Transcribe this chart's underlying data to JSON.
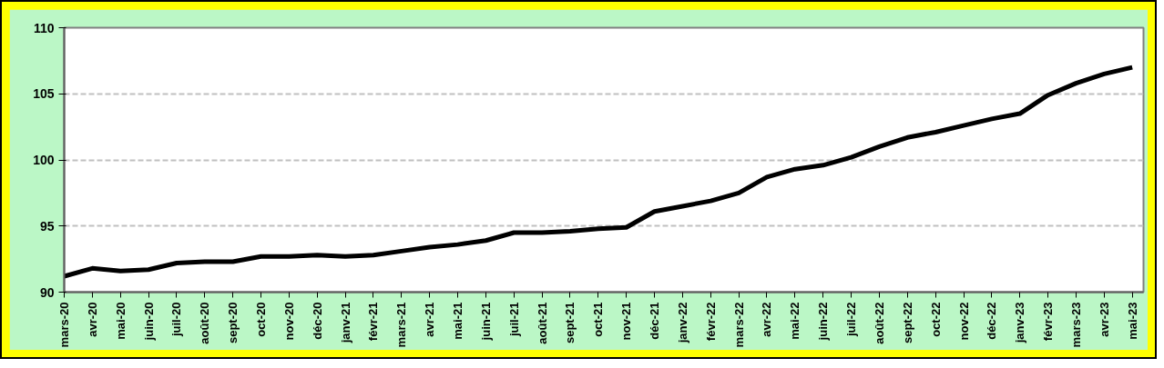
{
  "chart_data": {
    "type": "line",
    "categories": [
      "mars-20",
      "avr-20",
      "mai-20",
      "juin-20",
      "juil-20",
      "août-20",
      "sept-20",
      "oct-20",
      "nov-20",
      "déc-20",
      "janv-21",
      "févr-21",
      "mars-21",
      "avr-21",
      "mai-21",
      "juin-21",
      "juil-21",
      "août-21",
      "sept-21",
      "oct-21",
      "nov-21",
      "déc-21",
      "janv-22",
      "févr-22",
      "mars-22",
      "avr-22",
      "mai-22",
      "juin-22",
      "juil-22",
      "août-22",
      "sept-22",
      "oct-22",
      "nov-22",
      "déc-22",
      "janv-23",
      "févr-23",
      "mars-23",
      "avr-23",
      "mai-23"
    ],
    "series": [
      {
        "color": "#000000",
        "values": [
          91.2,
          91.8,
          91.6,
          91.7,
          92.2,
          92.3,
          92.3,
          92.7,
          92.7,
          92.8,
          92.7,
          92.8,
          93.1,
          93.4,
          93.6,
          93.9,
          94.5,
          94.5,
          94.6,
          94.8,
          94.9,
          96.1,
          96.5,
          96.9,
          97.5,
          98.7,
          99.3,
          99.6,
          100.2,
          101.0,
          101.7,
          102.1,
          102.6,
          103.1,
          103.5,
          104.9,
          105.8,
          106.5,
          107.0
        ]
      }
    ],
    "ylim": [
      90,
      110
    ],
    "yticks": [
      90,
      95,
      100,
      105,
      110
    ],
    "grid": "y",
    "marker": "none",
    "line_style": "solid"
  }
}
